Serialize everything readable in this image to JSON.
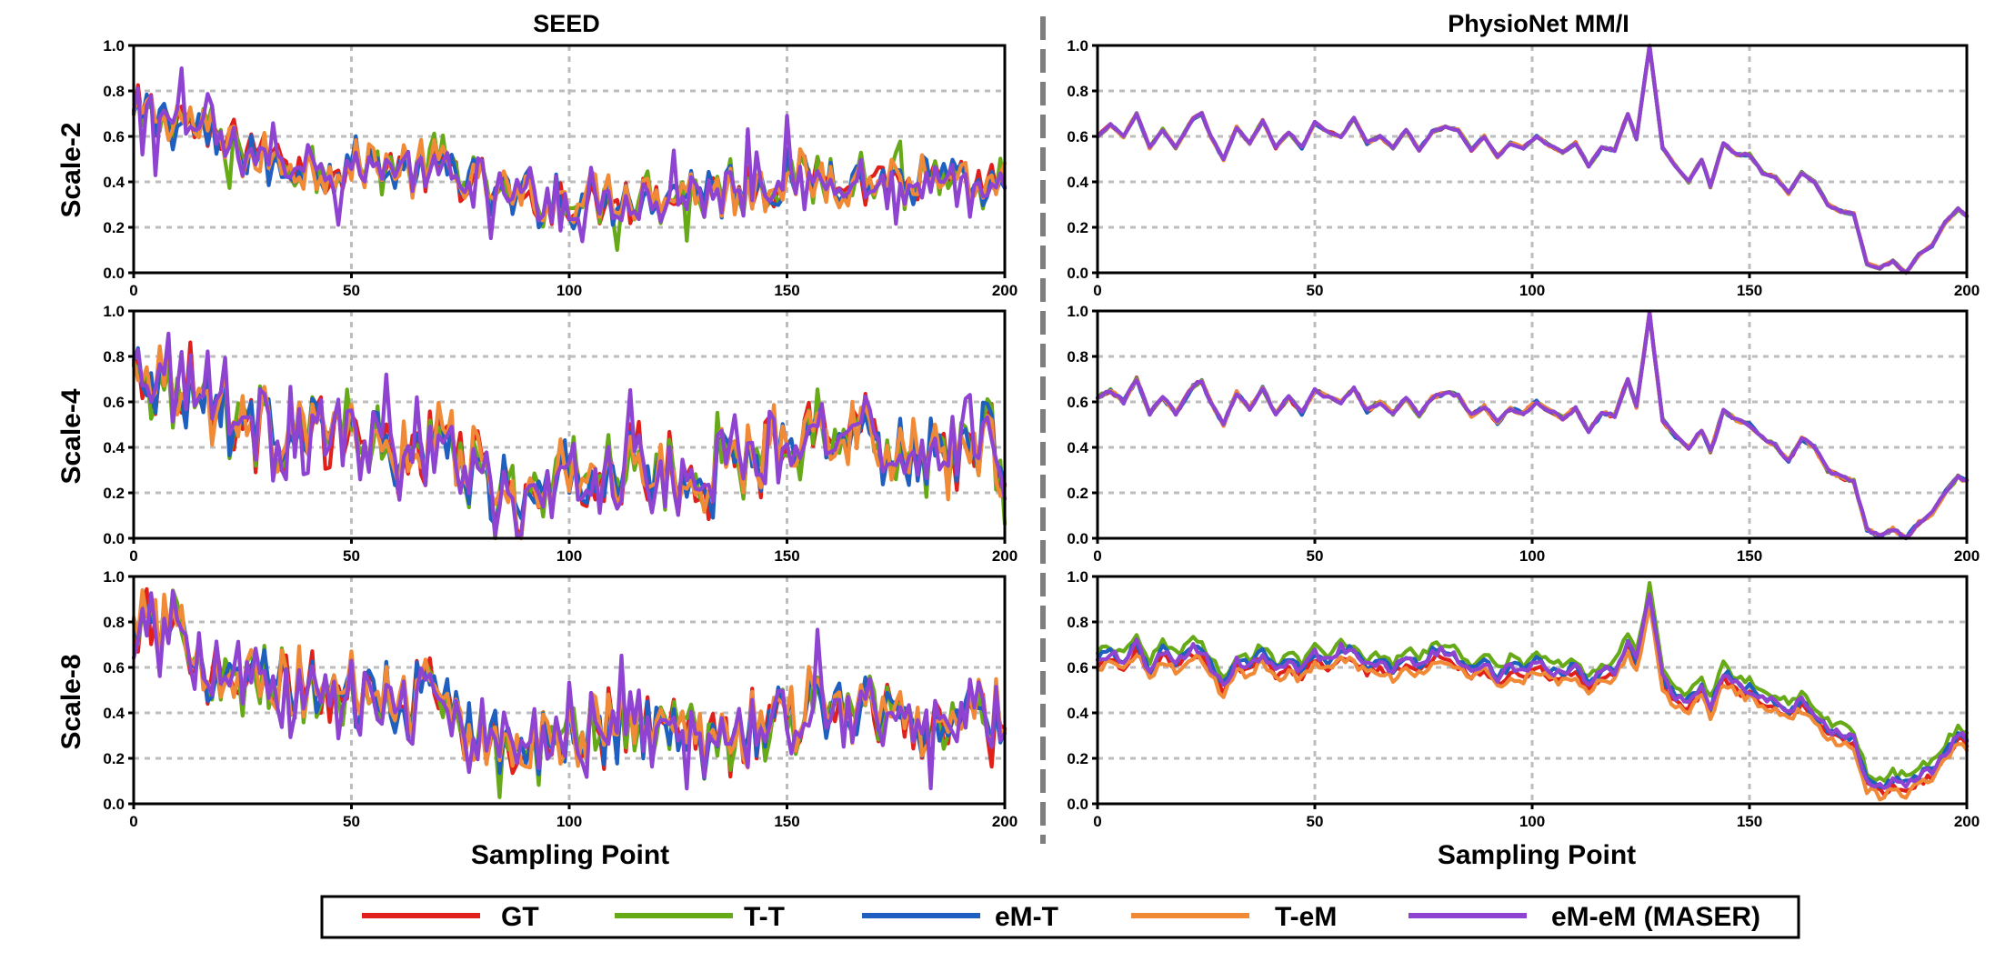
{
  "columns": [
    "SEED",
    "PhysioNet MM/I"
  ],
  "rows": [
    "Scale-2",
    "Scale-4",
    "Scale-8"
  ],
  "xlabel": "Sampling Point",
  "legend": [
    {
      "name": "GT",
      "color": "#e0201b"
    },
    {
      "name": "T-T",
      "color": "#66aa17"
    },
    {
      "name": "eM-T",
      "color": "#1f5fbf"
    },
    {
      "name": "T-eM",
      "color": "#f08a36"
    },
    {
      "name": "eM-eM (MASER)",
      "color": "#8e44d0"
    }
  ],
  "chart_data": {
    "type": "line",
    "layout": "3x2 grid of line subplots",
    "xlim": [
      0,
      200
    ],
    "ylim": [
      0.0,
      1.0
    ],
    "xticks": [
      0,
      50,
      100,
      150,
      200
    ],
    "yticks": [
      "0.0",
      "0.2",
      "0.4",
      "0.6",
      "0.8",
      "1.0"
    ],
    "grid": true,
    "legend_position": "bottom",
    "seed_keypoints": [
      [
        [
          0,
          0.7
        ],
        [
          10,
          0.68
        ],
        [
          20,
          0.57
        ],
        [
          30,
          0.5
        ],
        [
          40,
          0.47
        ],
        [
          50,
          0.47
        ],
        [
          60,
          0.47
        ],
        [
          70,
          0.45
        ],
        [
          75,
          0.44
        ],
        [
          80,
          0.36
        ],
        [
          90,
          0.32
        ],
        [
          100,
          0.33
        ],
        [
          110,
          0.33
        ],
        [
          120,
          0.34
        ],
        [
          130,
          0.36
        ],
        [
          140,
          0.38
        ],
        [
          150,
          0.4
        ],
        [
          160,
          0.42
        ],
        [
          170,
          0.41
        ],
        [
          180,
          0.39
        ],
        [
          190,
          0.37
        ],
        [
          200,
          0.36
        ]
      ],
      [
        [
          0,
          0.76
        ],
        [
          10,
          0.7
        ],
        [
          20,
          0.6
        ],
        [
          30,
          0.46
        ],
        [
          40,
          0.46
        ],
        [
          50,
          0.44
        ],
        [
          60,
          0.37
        ],
        [
          70,
          0.4
        ],
        [
          75,
          0.38
        ],
        [
          80,
          0.22
        ],
        [
          90,
          0.15
        ],
        [
          95,
          0.19
        ],
        [
          100,
          0.27
        ],
        [
          110,
          0.32
        ],
        [
          120,
          0.29
        ],
        [
          125,
          0.22
        ],
        [
          130,
          0.26
        ],
        [
          140,
          0.34
        ],
        [
          150,
          0.45
        ],
        [
          160,
          0.5
        ],
        [
          170,
          0.44
        ],
        [
          180,
          0.37
        ],
        [
          190,
          0.4
        ],
        [
          200,
          0.38
        ]
      ],
      [
        [
          0,
          0.8
        ],
        [
          10,
          0.73
        ],
        [
          20,
          0.6
        ],
        [
          30,
          0.51
        ],
        [
          40,
          0.52
        ],
        [
          50,
          0.47
        ],
        [
          60,
          0.43
        ],
        [
          70,
          0.46
        ],
        [
          75,
          0.42
        ],
        [
          80,
          0.3
        ],
        [
          90,
          0.22
        ],
        [
          95,
          0.25
        ],
        [
          100,
          0.28
        ],
        [
          110,
          0.37
        ],
        [
          120,
          0.33
        ],
        [
          130,
          0.3
        ],
        [
          140,
          0.33
        ],
        [
          150,
          0.4
        ],
        [
          160,
          0.45
        ],
        [
          170,
          0.4
        ],
        [
          180,
          0.35
        ],
        [
          190,
          0.38
        ],
        [
          200,
          0.35
        ]
      ]
    ],
    "physionet_keypoints": [
      [
        [
          0,
          0.6
        ],
        [
          3,
          0.65
        ],
        [
          6,
          0.6
        ],
        [
          9,
          0.7
        ],
        [
          12,
          0.55
        ],
        [
          15,
          0.63
        ],
        [
          18,
          0.55
        ],
        [
          22,
          0.68
        ],
        [
          24,
          0.7
        ],
        [
          26,
          0.6
        ],
        [
          29,
          0.5
        ],
        [
          32,
          0.64
        ],
        [
          35,
          0.57
        ],
        [
          38,
          0.67
        ],
        [
          41,
          0.55
        ],
        [
          44,
          0.62
        ],
        [
          47,
          0.55
        ],
        [
          50,
          0.66
        ],
        [
          53,
          0.62
        ],
        [
          56,
          0.6
        ],
        [
          59,
          0.68
        ],
        [
          62,
          0.57
        ],
        [
          65,
          0.6
        ],
        [
          68,
          0.55
        ],
        [
          71,
          0.63
        ],
        [
          74,
          0.54
        ],
        [
          77,
          0.62
        ],
        [
          80,
          0.64
        ],
        [
          83,
          0.63
        ],
        [
          86,
          0.54
        ],
        [
          89,
          0.6
        ],
        [
          92,
          0.51
        ],
        [
          95,
          0.57
        ],
        [
          98,
          0.55
        ],
        [
          101,
          0.6
        ],
        [
          104,
          0.56
        ],
        [
          107,
          0.53
        ],
        [
          110,
          0.57
        ],
        [
          113,
          0.47
        ],
        [
          116,
          0.55
        ],
        [
          119,
          0.54
        ],
        [
          122,
          0.7
        ],
        [
          124,
          0.59
        ],
        [
          127,
          1.0
        ],
        [
          130,
          0.55
        ],
        [
          133,
          0.47
        ],
        [
          136,
          0.4
        ],
        [
          139,
          0.5
        ],
        [
          141,
          0.38
        ],
        [
          144,
          0.57
        ],
        [
          147,
          0.52
        ],
        [
          150,
          0.52
        ],
        [
          153,
          0.44
        ],
        [
          156,
          0.42
        ],
        [
          159,
          0.35
        ],
        [
          162,
          0.44
        ],
        [
          165,
          0.4
        ],
        [
          168,
          0.3
        ],
        [
          171,
          0.27
        ],
        [
          174,
          0.26
        ],
        [
          177,
          0.04
        ],
        [
          180,
          0.02
        ],
        [
          183,
          0.05
        ],
        [
          186,
          0.0
        ],
        [
          189,
          0.08
        ],
        [
          192,
          0.12
        ],
        [
          195,
          0.22
        ],
        [
          198,
          0.28
        ],
        [
          200,
          0.25
        ]
      ],
      [
        [
          0,
          0.62
        ],
        [
          3,
          0.65
        ],
        [
          6,
          0.6
        ],
        [
          9,
          0.7
        ],
        [
          12,
          0.55
        ],
        [
          15,
          0.62
        ],
        [
          18,
          0.55
        ],
        [
          22,
          0.67
        ],
        [
          24,
          0.69
        ],
        [
          26,
          0.6
        ],
        [
          29,
          0.5
        ],
        [
          32,
          0.64
        ],
        [
          35,
          0.57
        ],
        [
          38,
          0.66
        ],
        [
          41,
          0.55
        ],
        [
          44,
          0.62
        ],
        [
          47,
          0.55
        ],
        [
          50,
          0.65
        ],
        [
          53,
          0.62
        ],
        [
          56,
          0.6
        ],
        [
          59,
          0.66
        ],
        [
          62,
          0.56
        ],
        [
          65,
          0.6
        ],
        [
          68,
          0.55
        ],
        [
          71,
          0.62
        ],
        [
          74,
          0.54
        ],
        [
          77,
          0.62
        ],
        [
          80,
          0.64
        ],
        [
          83,
          0.63
        ],
        [
          86,
          0.54
        ],
        [
          89,
          0.58
        ],
        [
          92,
          0.51
        ],
        [
          95,
          0.57
        ],
        [
          98,
          0.55
        ],
        [
          101,
          0.6
        ],
        [
          104,
          0.56
        ],
        [
          107,
          0.53
        ],
        [
          110,
          0.57
        ],
        [
          113,
          0.47
        ],
        [
          116,
          0.55
        ],
        [
          119,
          0.54
        ],
        [
          122,
          0.7
        ],
        [
          124,
          0.58
        ],
        [
          127,
          0.99
        ],
        [
          130,
          0.52
        ],
        [
          133,
          0.45
        ],
        [
          136,
          0.4
        ],
        [
          139,
          0.48
        ],
        [
          141,
          0.38
        ],
        [
          144,
          0.56
        ],
        [
          147,
          0.52
        ],
        [
          150,
          0.5
        ],
        [
          153,
          0.44
        ],
        [
          156,
          0.41
        ],
        [
          159,
          0.34
        ],
        [
          162,
          0.44
        ],
        [
          165,
          0.4
        ],
        [
          168,
          0.3
        ],
        [
          171,
          0.27
        ],
        [
          174,
          0.25
        ],
        [
          177,
          0.04
        ],
        [
          180,
          0.01
        ],
        [
          183,
          0.04
        ],
        [
          186,
          0.0
        ],
        [
          189,
          0.07
        ],
        [
          192,
          0.11
        ],
        [
          195,
          0.2
        ],
        [
          198,
          0.27
        ],
        [
          200,
          0.25
        ]
      ],
      [
        [
          0,
          0.63
        ],
        [
          3,
          0.66
        ],
        [
          6,
          0.62
        ],
        [
          9,
          0.7
        ],
        [
          12,
          0.58
        ],
        [
          15,
          0.67
        ],
        [
          18,
          0.62
        ],
        [
          22,
          0.68
        ],
        [
          24,
          0.67
        ],
        [
          26,
          0.6
        ],
        [
          29,
          0.51
        ],
        [
          32,
          0.62
        ],
        [
          35,
          0.6
        ],
        [
          38,
          0.66
        ],
        [
          41,
          0.58
        ],
        [
          44,
          0.62
        ],
        [
          47,
          0.58
        ],
        [
          50,
          0.66
        ],
        [
          53,
          0.62
        ],
        [
          56,
          0.68
        ],
        [
          59,
          0.66
        ],
        [
          62,
          0.6
        ],
        [
          65,
          0.62
        ],
        [
          68,
          0.58
        ],
        [
          71,
          0.64
        ],
        [
          74,
          0.6
        ],
        [
          77,
          0.66
        ],
        [
          80,
          0.67
        ],
        [
          83,
          0.63
        ],
        [
          86,
          0.58
        ],
        [
          89,
          0.62
        ],
        [
          92,
          0.55
        ],
        [
          95,
          0.6
        ],
        [
          98,
          0.58
        ],
        [
          101,
          0.62
        ],
        [
          104,
          0.58
        ],
        [
          107,
          0.57
        ],
        [
          110,
          0.6
        ],
        [
          113,
          0.52
        ],
        [
          116,
          0.58
        ],
        [
          119,
          0.58
        ],
        [
          122,
          0.7
        ],
        [
          124,
          0.62
        ],
        [
          127,
          0.92
        ],
        [
          130,
          0.55
        ],
        [
          133,
          0.46
        ],
        [
          136,
          0.45
        ],
        [
          139,
          0.5
        ],
        [
          141,
          0.42
        ],
        [
          144,
          0.57
        ],
        [
          147,
          0.52
        ],
        [
          150,
          0.5
        ],
        [
          153,
          0.46
        ],
        [
          156,
          0.44
        ],
        [
          159,
          0.4
        ],
        [
          162,
          0.45
        ],
        [
          165,
          0.38
        ],
        [
          168,
          0.32
        ],
        [
          171,
          0.3
        ],
        [
          174,
          0.28
        ],
        [
          177,
          0.1
        ],
        [
          180,
          0.07
        ],
        [
          183,
          0.1
        ],
        [
          186,
          0.08
        ],
        [
          189,
          0.12
        ],
        [
          192,
          0.14
        ],
        [
          195,
          0.22
        ],
        [
          198,
          0.3
        ],
        [
          200,
          0.28
        ]
      ]
    ]
  }
}
